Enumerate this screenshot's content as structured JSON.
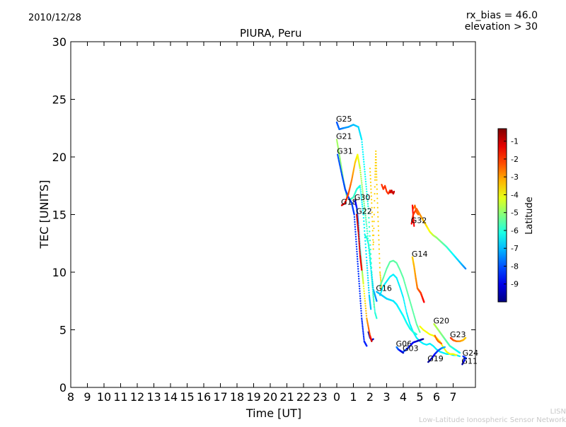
{
  "header": {
    "date": "2010/12/28",
    "title": "PIURA, Peru",
    "rx_bias": "rx_bias = 46.0",
    "elevation": "elevation > 30"
  },
  "footer": {
    "org_short": "LISN",
    "org_long": "Low-Latitude Ionospheric Sensor Network"
  },
  "chart_data": {
    "type": "scatter",
    "title": "PIURA, Peru",
    "xlabel": "Time [UT]",
    "ylabel": "TEC [UNITS]",
    "ylim": [
      0,
      30
    ],
    "yticks": [
      0,
      5,
      10,
      15,
      20,
      25,
      30
    ],
    "xticks": [
      "8",
      "9",
      "10",
      "11",
      "12",
      "13",
      "14",
      "15",
      "16",
      "17",
      "18",
      "19",
      "20",
      "21",
      "22",
      "23",
      "0",
      "1",
      "2",
      "3",
      "4",
      "5",
      "6",
      "7"
    ],
    "grid": false,
    "colorbar": {
      "label": "Latitude",
      "ticks": [
        "-1",
        "-2",
        "-3",
        "-4",
        "-5",
        "-6",
        "-7",
        "-8",
        "-9"
      ],
      "range": [
        -10,
        -0.3
      ],
      "colormap": "jet"
    },
    "series": [
      {
        "name": "G25",
        "lat_start": -8.0,
        "lat_end": -5.5,
        "points": [
          [
            0.0,
            23.0
          ],
          [
            0.15,
            22.4
          ],
          [
            0.4,
            22.5
          ],
          [
            0.7,
            22.6
          ],
          [
            1.0,
            22.8
          ],
          [
            1.3,
            22.6
          ],
          [
            1.5,
            21.5
          ],
          [
            1.7,
            18.5
          ],
          [
            1.9,
            15.5
          ],
          [
            2.1,
            10.0
          ],
          [
            2.25,
            7.0
          ]
        ]
      },
      {
        "name": "G21",
        "lat_start": -4.8,
        "lat_end": -7.0,
        "points": [
          [
            0.0,
            21.5
          ],
          [
            0.2,
            19.8
          ],
          [
            0.4,
            18.0
          ],
          [
            0.6,
            16.6
          ],
          [
            0.8,
            16.3
          ],
          [
            1.0,
            16.5
          ],
          [
            1.2,
            17.2
          ],
          [
            1.4,
            17.5
          ],
          [
            1.6,
            15.0
          ],
          [
            1.8,
            11.0
          ],
          [
            1.95,
            8.0
          ],
          [
            2.05,
            6.8
          ]
        ]
      },
      {
        "name": "G31",
        "lat_start": -8.0,
        "lat_end": -8.5,
        "points": [
          [
            0.05,
            20.2
          ],
          [
            0.3,
            18.5
          ],
          [
            0.5,
            17.2
          ],
          [
            0.7,
            16.5
          ],
          [
            0.9,
            16.0
          ],
          [
            1.05,
            15.0
          ],
          [
            1.2,
            12.0
          ],
          [
            1.35,
            9.0
          ],
          [
            1.5,
            6.0
          ],
          [
            1.65,
            4.0
          ],
          [
            1.8,
            3.6
          ]
        ]
      },
      {
        "name": "G18",
        "lat_start": -1.0,
        "lat_end": -7.5,
        "points": [
          [
            0.3,
            15.8
          ],
          [
            0.5,
            16.0
          ],
          [
            0.7,
            16.8
          ],
          [
            0.9,
            18.0
          ],
          [
            1.1,
            19.5
          ],
          [
            1.25,
            20.2
          ],
          [
            1.4,
            19.0
          ],
          [
            1.6,
            16.5
          ],
          [
            1.8,
            14.0
          ],
          [
            2.0,
            11.0
          ],
          [
            2.2,
            8.5
          ],
          [
            2.4,
            7.5
          ]
        ]
      },
      {
        "name": "G30",
        "lat_start": -9.5,
        "lat_end": -1.0,
        "points": [
          [
            1.1,
            16.2
          ],
          [
            1.2,
            15.6
          ],
          [
            1.3,
            14.2
          ],
          [
            1.4,
            12.0
          ],
          [
            1.5,
            10.5
          ],
          [
            1.6,
            9.0
          ],
          [
            1.8,
            6.0
          ],
          [
            2.0,
            4.5
          ],
          [
            2.1,
            4.0
          ]
        ]
      },
      {
        "name": "G22",
        "lat_start": -1.0,
        "lat_end": -1.5,
        "points": [
          [
            1.2,
            15.0
          ],
          [
            1.3,
            13.5
          ],
          [
            1.4,
            11.5
          ],
          [
            1.5,
            10.2
          ]
        ]
      },
      {
        "name": "G32",
        "lat_start": -1.5,
        "lat_end": -7.5,
        "points": [
          [
            4.5,
            14.2
          ],
          [
            4.6,
            15.0
          ],
          [
            4.8,
            15.5
          ],
          [
            5.0,
            15.0
          ],
          [
            5.2,
            14.5
          ],
          [
            5.4,
            14.0
          ],
          [
            5.6,
            13.5
          ],
          [
            5.8,
            13.2
          ],
          [
            6.0,
            13.0
          ],
          [
            6.3,
            12.6
          ],
          [
            6.6,
            12.2
          ],
          [
            6.9,
            11.7
          ],
          [
            7.2,
            11.2
          ],
          [
            7.5,
            10.7
          ],
          [
            7.75,
            10.3
          ]
        ]
      },
      {
        "name": "G14",
        "lat_start": -3.5,
        "lat_end": -1.5,
        "points": [
          [
            4.55,
            11.3
          ],
          [
            4.65,
            10.5
          ],
          [
            4.75,
            9.5
          ],
          [
            4.85,
            8.6
          ],
          [
            4.95,
            8.4
          ],
          [
            5.05,
            8.2
          ],
          [
            5.15,
            7.8
          ],
          [
            5.25,
            7.4
          ]
        ]
      },
      {
        "name": "G16",
        "lat_start": -7.0,
        "lat_end": -6.0,
        "points": [
          [
            2.4,
            8.3
          ],
          [
            2.6,
            8.1
          ],
          [
            2.8,
            7.9
          ],
          [
            3.0,
            7.7
          ],
          [
            3.2,
            7.6
          ],
          [
            3.4,
            7.5
          ],
          [
            3.6,
            7.2
          ],
          [
            3.8,
            6.7
          ],
          [
            4.0,
            6.2
          ],
          [
            4.2,
            5.6
          ],
          [
            4.4,
            5.1
          ],
          [
            4.6,
            4.8
          ],
          [
            4.8,
            4.6
          ]
        ]
      },
      {
        "name": "G20",
        "lat_start": -4.5,
        "lat_end": -6.5,
        "points": [
          [
            5.85,
            5.5
          ],
          [
            6.0,
            5.2
          ],
          [
            6.2,
            4.8
          ],
          [
            6.4,
            4.4
          ],
          [
            6.6,
            4.0
          ],
          [
            6.8,
            3.6
          ],
          [
            7.0,
            3.4
          ],
          [
            7.2,
            3.2
          ],
          [
            7.4,
            3.0
          ]
        ]
      },
      {
        "name": "G23",
        "lat_start": -2.0,
        "lat_end": -3.5,
        "points": [
          [
            6.85,
            4.3
          ],
          [
            7.0,
            4.1
          ],
          [
            7.2,
            4.0
          ],
          [
            7.4,
            4.0
          ],
          [
            7.6,
            4.1
          ],
          [
            7.75,
            4.3
          ]
        ]
      },
      {
        "name": "G06",
        "lat_start": -7.5,
        "lat_end": -9.5,
        "points": [
          [
            3.6,
            3.5
          ],
          [
            3.7,
            3.3
          ],
          [
            3.8,
            3.2
          ],
          [
            3.9,
            3.1
          ],
          [
            4.0,
            3.0
          ]
        ]
      },
      {
        "name": "G03",
        "lat_start": -8.0,
        "lat_end": -9.8,
        "points": [
          [
            4.0,
            3.1
          ],
          [
            4.2,
            3.3
          ],
          [
            4.4,
            3.6
          ],
          [
            4.6,
            3.9
          ],
          [
            4.8,
            4.0
          ],
          [
            5.0,
            4.1
          ],
          [
            5.2,
            4.2
          ]
        ]
      },
      {
        "name": "G19",
        "lat_start": -9.8,
        "lat_end": -7.0,
        "points": [
          [
            5.5,
            2.2
          ],
          [
            5.7,
            2.5
          ],
          [
            5.9,
            2.9
          ],
          [
            6.1,
            3.2
          ],
          [
            6.3,
            3.4
          ],
          [
            6.5,
            3.5
          ]
        ]
      },
      {
        "name": "G24",
        "lat_start": -8.0,
        "lat_end": -9.5,
        "points": [
          [
            7.6,
            2.7
          ],
          [
            7.7,
            2.6
          ],
          [
            7.78,
            2.5
          ]
        ]
      },
      {
        "name": "G11",
        "lat_start": -9.8,
        "lat_end": -8.0,
        "points": [
          [
            7.55,
            2.0
          ],
          [
            7.65,
            2.3
          ],
          [
            7.75,
            2.6
          ]
        ]
      }
    ],
    "extra_scatter": [
      {
        "lat": -3.5,
        "points": [
          [
            2.0,
            19.0
          ],
          [
            2.1,
            16.0
          ],
          [
            2.2,
            12.0
          ],
          [
            2.3,
            18.0
          ],
          [
            2.35,
            20.5
          ],
          [
            2.4,
            18.0
          ],
          [
            2.5,
            14.0
          ],
          [
            2.6,
            10.0
          ],
          [
            2.7,
            8.5
          ]
        ]
      },
      {
        "lat": -2.0,
        "points": [
          [
            2.7,
            17.6
          ],
          [
            2.8,
            17.2
          ],
          [
            2.9,
            17.5
          ],
          [
            3.0,
            17.0
          ],
          [
            3.1,
            16.8
          ],
          [
            3.2,
            17.1
          ],
          [
            3.3,
            16.9
          ]
        ]
      },
      {
        "lat": -1.0,
        "points": [
          [
            3.2,
            16.9
          ],
          [
            3.3,
            17.1
          ],
          [
            3.4,
            16.8
          ],
          [
            3.45,
            17.0
          ]
        ]
      },
      {
        "lat": -5.5,
        "points": [
          [
            2.6,
            8.8
          ],
          [
            2.8,
            9.5
          ],
          [
            3.0,
            10.3
          ],
          [
            3.2,
            10.9
          ],
          [
            3.4,
            11.0
          ],
          [
            3.6,
            10.8
          ],
          [
            3.8,
            10.2
          ],
          [
            4.0,
            9.5
          ],
          [
            4.2,
            8.5
          ],
          [
            4.4,
            7.5
          ],
          [
            4.6,
            6.5
          ],
          [
            4.8,
            5.5
          ],
          [
            5.0,
            4.8
          ]
        ]
      },
      {
        "lat": -6.5,
        "points": [
          [
            2.6,
            8.0
          ],
          [
            2.8,
            8.8
          ],
          [
            3.0,
            9.2
          ],
          [
            3.2,
            9.6
          ],
          [
            3.4,
            9.8
          ],
          [
            3.6,
            9.5
          ],
          [
            3.8,
            8.7
          ],
          [
            4.0,
            7.8
          ],
          [
            4.2,
            6.5
          ],
          [
            4.4,
            5.5
          ],
          [
            4.6,
            4.8
          ],
          [
            4.8,
            4.3
          ],
          [
            5.0,
            4.0
          ],
          [
            5.2,
            3.8
          ],
          [
            5.4,
            3.7
          ],
          [
            5.6,
            3.8
          ],
          [
            5.8,
            3.6
          ],
          [
            6.0,
            3.3
          ],
          [
            6.2,
            3.1
          ],
          [
            6.4,
            3.0
          ],
          [
            6.6,
            2.9
          ],
          [
            6.8,
            2.9
          ],
          [
            7.0,
            2.8
          ],
          [
            7.2,
            2.8
          ],
          [
            7.4,
            2.7
          ]
        ]
      },
      {
        "lat": -4.0,
        "points": [
          [
            5.0,
            5.3
          ],
          [
            5.2,
            5.0
          ],
          [
            5.4,
            4.8
          ],
          [
            5.6,
            4.6
          ],
          [
            5.8,
            4.5
          ],
          [
            6.0,
            4.3
          ],
          [
            6.2,
            4.0
          ],
          [
            6.4,
            3.5
          ],
          [
            6.6,
            3.1
          ],
          [
            6.8,
            2.9
          ],
          [
            7.0,
            2.9
          ],
          [
            7.2,
            2.8
          ]
        ]
      },
      {
        "lat": -6.0,
        "points": [
          [
            1.7,
            13.2
          ],
          [
            1.8,
            13.0
          ],
          [
            1.9,
            12.5
          ],
          [
            2.0,
            11.5
          ],
          [
            2.1,
            9.5
          ],
          [
            2.2,
            7.8
          ],
          [
            2.3,
            6.5
          ],
          [
            2.4,
            6.0
          ]
        ]
      },
      {
        "lat": -9.5,
        "points": [
          [
            1.9,
            4.8
          ],
          [
            2.0,
            4.3
          ],
          [
            2.1,
            4.1
          ],
          [
            2.2,
            4.2
          ]
        ]
      },
      {
        "lat": -2.5,
        "points": [
          [
            4.6,
            15.5
          ],
          [
            4.7,
            15.8
          ],
          [
            4.8,
            15.2
          ],
          [
            4.9,
            15.0
          ]
        ]
      },
      {
        "lat": -1.5,
        "points": [
          [
            4.55,
            15.8
          ],
          [
            4.6,
            14.8
          ],
          [
            4.65,
            14.0
          ]
        ]
      },
      {
        "lat": -2.5,
        "points": [
          [
            5.9,
            4.5
          ],
          [
            6.0,
            4.2
          ],
          [
            6.1,
            4.0
          ],
          [
            6.2,
            3.9
          ],
          [
            6.3,
            3.8
          ]
        ]
      }
    ]
  }
}
